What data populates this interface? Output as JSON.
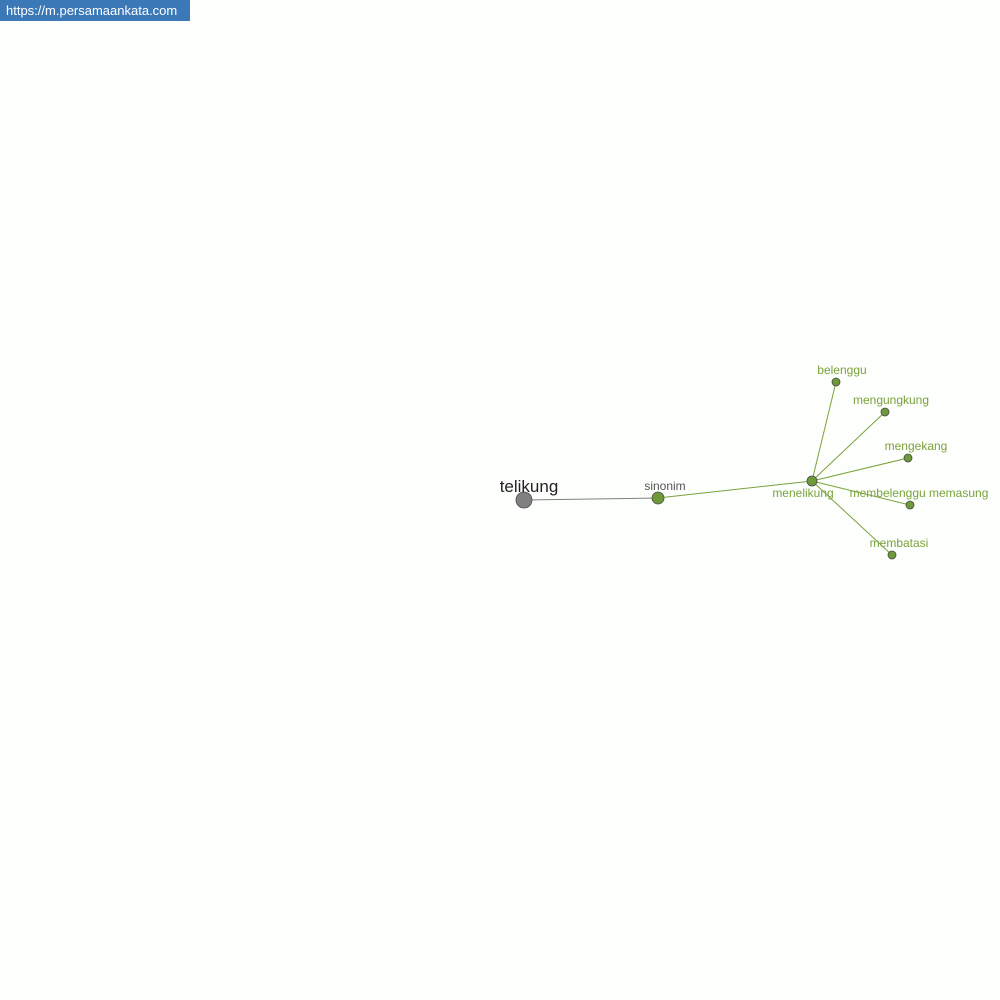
{
  "watermark": "https://m.persamaankata.com",
  "graph": {
    "colors": {
      "root": "#808080",
      "accent": "#7aa23a",
      "node_fill": "#6e9a3a",
      "root_text": "#222222",
      "relation_text": "#555555"
    },
    "root": {
      "id": "telikung",
      "label": "telikung"
    },
    "relation": {
      "id": "sinonim",
      "label": "sinonim"
    },
    "hub": {
      "id": "menelikung",
      "label": "menelikung"
    },
    "leaves": [
      {
        "id": "belenggu",
        "label": "belenggu"
      },
      {
        "id": "mengungkung",
        "label": "mengungkung"
      },
      {
        "id": "mengekang",
        "label": "mengekang"
      },
      {
        "id": "membelenggu-memasung",
        "label": "membelenggu memasung"
      },
      {
        "id": "membatasi",
        "label": "membatasi"
      }
    ],
    "edges": [
      [
        "telikung",
        "sinonim"
      ],
      [
        "sinonim",
        "menelikung"
      ],
      [
        "menelikung",
        "belenggu"
      ],
      [
        "menelikung",
        "mengungkung"
      ],
      [
        "menelikung",
        "mengekang"
      ],
      [
        "menelikung",
        "membelenggu-memasung"
      ],
      [
        "menelikung",
        "membatasi"
      ]
    ]
  }
}
